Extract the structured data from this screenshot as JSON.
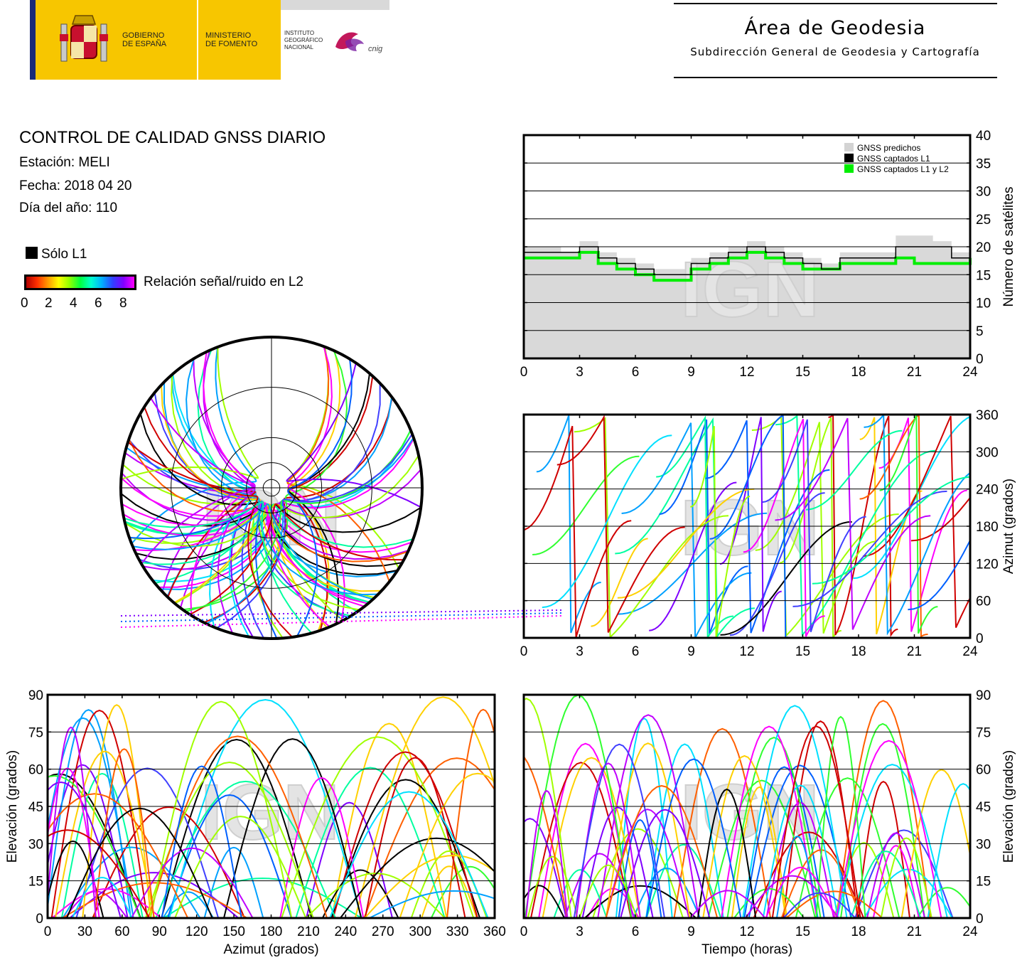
{
  "header": {
    "gobierno": "GOBIERNO\nDE ESPAÑA",
    "ministerio": "MINISTERIO\nDE FOMENTO",
    "instituto": "INSTITUTO\nGEOGRÁFICO\nNACIONAL",
    "cnig": "cnig",
    "area_title": "Área de Geodesia",
    "area_subtitle": "Subdirección General de Geodesia y Cartografía"
  },
  "info": {
    "title": "CONTROL DE CALIDAD GNSS DIARIO",
    "station": "Estación: MELI",
    "date": "Fecha: 2018 04 20",
    "doy": "Día del año: 110"
  },
  "legend": {
    "l1_only": "Sólo L1",
    "snr_label": "Relación señal/ruido en L2",
    "snr_ticks": [
      "0",
      "2",
      "4",
      "6",
      "8"
    ],
    "colors": {
      "l1_only": "#000000",
      "predicted": "#d3d3d3",
      "captured_l1": "#000000",
      "captured_l1l2": "#00ee00"
    }
  },
  "watermark": "IGN",
  "chart_data": [
    {
      "type": "line",
      "ylabel": "Número de satélites",
      "xlim": [
        0,
        24
      ],
      "ylim": [
        0,
        40
      ],
      "xticks": [
        "0",
        "3",
        "6",
        "9",
        "12",
        "15",
        "18",
        "21",
        "24"
      ],
      "yticks": [
        "0",
        "5",
        "10",
        "15",
        "20",
        "25",
        "30",
        "35",
        "40"
      ],
      "grid": true,
      "legend_position": "top-right",
      "series": [
        {
          "name": "GNSS predichos",
          "x": [
            0,
            1,
            2,
            3,
            4,
            5,
            6,
            7,
            8,
            9,
            10,
            11,
            12,
            13,
            14,
            15,
            16,
            17,
            18,
            19,
            20,
            21,
            22,
            23,
            24
          ],
          "values": [
            20,
            20,
            19,
            21,
            19,
            18,
            17,
            16,
            16,
            18,
            19,
            20,
            21,
            20,
            19,
            18,
            17,
            19,
            19,
            19,
            22,
            22,
            21,
            19,
            20
          ]
        },
        {
          "name": "GNSS captados L1",
          "x": [
            0,
            1,
            2,
            3,
            4,
            5,
            6,
            7,
            8,
            9,
            10,
            11,
            12,
            13,
            14,
            15,
            16,
            17,
            18,
            19,
            20,
            21,
            22,
            23,
            24
          ],
          "values": [
            19,
            19,
            19,
            20,
            18,
            17,
            16,
            15,
            15,
            17,
            18,
            19,
            20,
            19,
            18,
            17,
            16,
            18,
            18,
            18,
            20,
            20,
            20,
            18,
            19
          ]
        },
        {
          "name": "GNSS captados L1 y L2",
          "x": [
            0,
            1,
            2,
            3,
            4,
            5,
            6,
            7,
            8,
            9,
            10,
            11,
            12,
            13,
            14,
            15,
            16,
            17,
            18,
            19,
            20,
            21,
            22,
            23,
            24
          ],
          "values": [
            18,
            18,
            18,
            19,
            17,
            16,
            15,
            14,
            14,
            16,
            17,
            18,
            19,
            18,
            17,
            16,
            16,
            17,
            17,
            17,
            18,
            17,
            17,
            17,
            18
          ]
        }
      ]
    },
    {
      "type": "scatter",
      "ylabel": "Azimut (grados)",
      "xlim": [
        0,
        24
      ],
      "ylim": [
        0,
        360
      ],
      "xticks": [
        "0",
        "3",
        "6",
        "9",
        "12",
        "15",
        "18",
        "21",
        "24"
      ],
      "yticks": [
        "0",
        "60",
        "120",
        "180",
        "240",
        "300",
        "360"
      ],
      "grid": true
    },
    {
      "type": "scatter",
      "xlabel": "Azimut (grados)",
      "ylabel": "Elevación (grados)",
      "xlim": [
        0,
        360
      ],
      "ylim": [
        0,
        90
      ],
      "xticks": [
        "0",
        "30",
        "60",
        "90",
        "120",
        "150",
        "180",
        "210",
        "240",
        "270",
        "300",
        "330",
        "360"
      ],
      "yticks": [
        "0",
        "15",
        "30",
        "45",
        "60",
        "75",
        "90"
      ],
      "grid": true
    },
    {
      "type": "scatter",
      "xlabel": "Tiempo (horas)",
      "ylabel": "Elevación (grados)",
      "xlim": [
        0,
        24
      ],
      "ylim": [
        0,
        90
      ],
      "xticks": [
        "0",
        "3",
        "6",
        "9",
        "12",
        "15",
        "18",
        "21",
        "24"
      ],
      "yticks": [
        "0",
        "15",
        "30",
        "45",
        "60",
        "75",
        "90"
      ],
      "grid": true
    },
    {
      "type": "scatter",
      "subtype": "polar skyplot",
      "rings_deg": [
        0,
        30,
        60
      ],
      "grid": true
    }
  ]
}
